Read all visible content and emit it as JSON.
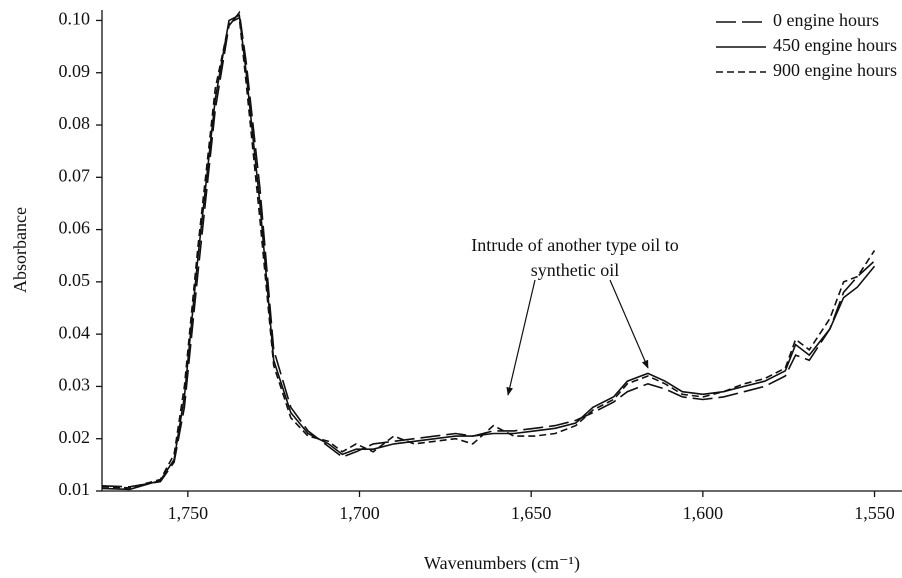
{
  "chart_data": {
    "type": "line",
    "xlabel": "Wavenumbers (cm⁻¹)",
    "ylabel": "Absorbance",
    "annotation": [
      "Intrude of another type oil to",
      "synthetic oil"
    ],
    "x": [
      1775,
      1767,
      1758,
      1754,
      1751,
      1747,
      1742,
      1738,
      1735,
      1733,
      1729,
      1725,
      1720,
      1715,
      1709,
      1705,
      1701,
      1696,
      1690,
      1684,
      1678,
      1672,
      1667,
      1661,
      1655,
      1649,
      1643,
      1637,
      1632,
      1626,
      1622,
      1616,
      1611,
      1606,
      1600,
      1594,
      1588,
      1582,
      1576,
      1573,
      1569,
      1563,
      1559,
      1555,
      1550
    ],
    "series": [
      {
        "name": "0 engine hours",
        "color": "#111111",
        "style": "long-dash",
        "values": [
          0.011,
          0.0108,
          0.0118,
          0.0155,
          0.026,
          0.052,
          0.083,
          0.099,
          0.1015,
          0.092,
          0.068,
          0.037,
          0.026,
          0.0215,
          0.0185,
          0.0165,
          0.0175,
          0.019,
          0.0195,
          0.02,
          0.0205,
          0.021,
          0.0205,
          0.0215,
          0.0215,
          0.022,
          0.0225,
          0.0235,
          0.025,
          0.027,
          0.029,
          0.0305,
          0.0295,
          0.028,
          0.0275,
          0.028,
          0.029,
          0.03,
          0.032,
          0.036,
          0.035,
          0.041,
          0.048,
          0.051,
          0.054
        ]
      },
      {
        "name": "450 engine hours",
        "color": "#111111",
        "style": "solid",
        "values": [
          0.0105,
          0.0103,
          0.012,
          0.016,
          0.028,
          0.055,
          0.085,
          0.1,
          0.101,
          0.09,
          0.065,
          0.035,
          0.025,
          0.021,
          0.019,
          0.017,
          0.018,
          0.018,
          0.019,
          0.0195,
          0.02,
          0.0205,
          0.0205,
          0.021,
          0.021,
          0.0215,
          0.022,
          0.023,
          0.026,
          0.028,
          0.031,
          0.0325,
          0.031,
          0.029,
          0.0285,
          0.029,
          0.03,
          0.031,
          0.033,
          0.038,
          0.036,
          0.041,
          0.047,
          0.049,
          0.053
        ]
      },
      {
        "name": "900 engine hours",
        "color": "#111111",
        "style": "short-dash",
        "values": [
          0.0108,
          0.0106,
          0.0122,
          0.017,
          0.03,
          0.057,
          0.087,
          0.0995,
          0.1005,
          0.088,
          0.062,
          0.034,
          0.024,
          0.0205,
          0.0195,
          0.0175,
          0.019,
          0.0175,
          0.0205,
          0.019,
          0.0195,
          0.02,
          0.019,
          0.0225,
          0.0205,
          0.0205,
          0.021,
          0.0225,
          0.0255,
          0.0275,
          0.0305,
          0.032,
          0.0305,
          0.0285,
          0.028,
          0.029,
          0.0305,
          0.0315,
          0.0335,
          0.039,
          0.037,
          0.043,
          0.05,
          0.051,
          0.056
        ]
      }
    ],
    "xlim": [
      1775,
      1542
    ],
    "xticks": [
      {
        "value": 1750,
        "label": "1,750"
      },
      {
        "value": 1700,
        "label": "1,700"
      },
      {
        "value": 1650,
        "label": "1,650"
      },
      {
        "value": 1600,
        "label": "1,600"
      },
      {
        "value": 1550,
        "label": "1,550"
      }
    ],
    "ylim": [
      0.01,
      0.102
    ],
    "yticks": [
      0.01,
      0.02,
      0.03,
      0.04,
      0.05,
      0.06,
      0.07,
      0.08,
      0.09,
      {
        "value": 0.1,
        "label": "0.10"
      }
    ],
    "legend": "upper right",
    "grid": false
  }
}
